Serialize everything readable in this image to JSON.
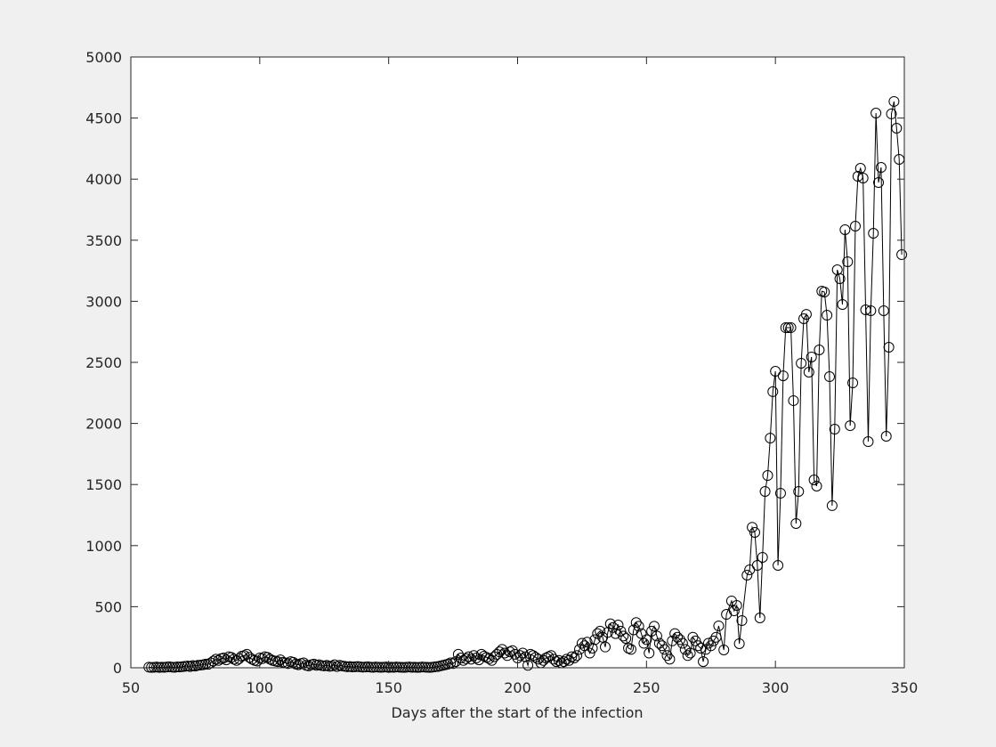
{
  "chart_data": {
    "type": "line",
    "marker": "circle",
    "color": "#000000",
    "xlabel": "Days after the start of the infection",
    "xlim": [
      50,
      350
    ],
    "xticks": [
      50,
      100,
      150,
      200,
      250,
      300,
      350
    ],
    "ylim": [
      0,
      5000
    ],
    "yticks": [
      0,
      500,
      1000,
      1500,
      2000,
      2500,
      3000,
      3500,
      4000,
      4500,
      5000
    ],
    "grid": false,
    "x": [
      57,
      58,
      59,
      60,
      61,
      62,
      63,
      64,
      65,
      66,
      67,
      68,
      69,
      70,
      71,
      72,
      73,
      74,
      75,
      76,
      77,
      78,
      79,
      80,
      81,
      82,
      83,
      84,
      85,
      86,
      87,
      88,
      89,
      90,
      91,
      92,
      93,
      94,
      95,
      96,
      97,
      98,
      99,
      100,
      101,
      102,
      103,
      104,
      105,
      106,
      107,
      108,
      109,
      110,
      111,
      112,
      113,
      114,
      115,
      116,
      117,
      118,
      119,
      120,
      121,
      122,
      123,
      124,
      125,
      126,
      127,
      128,
      129,
      130,
      131,
      132,
      133,
      134,
      135,
      136,
      137,
      138,
      139,
      140,
      141,
      142,
      143,
      144,
      145,
      146,
      147,
      148,
      149,
      150,
      151,
      152,
      153,
      154,
      155,
      156,
      157,
      158,
      159,
      160,
      161,
      162,
      163,
      164,
      165,
      166,
      167,
      168,
      169,
      170,
      171,
      172,
      173,
      174,
      175,
      176,
      177,
      178,
      179,
      180,
      181,
      182,
      183,
      184,
      185,
      186,
      187,
      188,
      189,
      190,
      191,
      192,
      193,
      194,
      195,
      196,
      197,
      198,
      199,
      200,
      201,
      202,
      203,
      204,
      205,
      206,
      207,
      208,
      209,
      210,
      211,
      212,
      213,
      214,
      215,
      216,
      217,
      218,
      219,
      220,
      221,
      222,
      223,
      224,
      225,
      226,
      227,
      228,
      229,
      230,
      231,
      232,
      233,
      234,
      235,
      236,
      237,
      238,
      239,
      240,
      241,
      242,
      243,
      244,
      245,
      246,
      247,
      248,
      249,
      250,
      251,
      252,
      253,
      254,
      255,
      256,
      257,
      258,
      259,
      260,
      261,
      262,
      263,
      264,
      265,
      266,
      267,
      268,
      269,
      270,
      271,
      272,
      273,
      274,
      275,
      276,
      277,
      278,
      280,
      281,
      283,
      284,
      285,
      286,
      287,
      289,
      290,
      291,
      292,
      293,
      294,
      295,
      296,
      297,
      298,
      299,
      300,
      301,
      302,
      303,
      304,
      305,
      306,
      307,
      308,
      309,
      310,
      311,
      312,
      313,
      314,
      315,
      316,
      317,
      318,
      319,
      320,
      321,
      322,
      323,
      324,
      325,
      326,
      327,
      328,
      329,
      330,
      331,
      332,
      333,
      334,
      335,
      336,
      337,
      338,
      339,
      340,
      341,
      342,
      343,
      344,
      345,
      346,
      347,
      348,
      349
    ],
    "values": [
      5,
      3,
      4,
      6,
      3,
      5,
      4,
      6,
      8,
      5,
      4,
      7,
      6,
      9,
      12,
      15,
      10,
      18,
      14,
      20,
      22,
      25,
      30,
      28,
      40,
      55,
      70,
      60,
      75,
      80,
      65,
      90,
      85,
      70,
      60,
      75,
      95,
      100,
      110,
      85,
      70,
      60,
      55,
      80,
      75,
      90,
      85,
      70,
      60,
      55,
      50,
      65,
      45,
      40,
      35,
      50,
      45,
      30,
      25,
      35,
      40,
      20,
      15,
      25,
      30,
      20,
      25,
      18,
      15,
      20,
      12,
      15,
      25,
      10,
      20,
      15,
      12,
      8,
      10,
      6,
      8,
      10,
      7,
      5,
      6,
      8,
      5,
      4,
      6,
      5,
      4,
      5,
      6,
      3,
      5,
      4,
      6,
      5,
      4,
      3,
      5,
      6,
      4,
      5,
      3,
      4,
      6,
      5,
      4,
      3,
      5,
      8,
      10,
      15,
      20,
      25,
      30,
      40,
      35,
      50,
      110,
      80,
      60,
      75,
      90,
      70,
      100,
      80,
      65,
      110,
      95,
      85,
      75,
      60,
      90,
      110,
      130,
      150,
      120,
      100,
      130,
      140,
      110,
      80,
      100,
      120,
      90,
      20,
      110,
      100,
      85,
      70,
      40,
      60,
      80,
      90,
      100,
      70,
      50,
      60,
      40,
      50,
      70,
      60,
      90,
      80,
      100,
      150,
      200,
      180,
      210,
      120,
      160,
      230,
      280,
      300,
      250,
      170,
      290,
      360,
      330,
      280,
      350,
      300,
      260,
      240,
      160,
      150,
      310,
      370,
      340,
      280,
      200,
      230,
      120,
      300,
      340,
      260,
      200,
      180,
      150,
      100,
      70,
      220,
      280,
      250,
      230,
      200,
      150,
      100,
      120,
      250,
      220,
      180,
      160,
      50,
      150,
      200,
      180,
      220,
      250,
      343,
      146,
      437,
      547,
      466,
      510,
      197,
      386,
      758,
      802,
      1150,
      1108,
      838,
      408,
      904,
      1443,
      1574,
      1880,
      2260,
      2427,
      838,
      1429,
      2390,
      2784,
      2784,
      2784,
      2187,
      1181,
      1443,
      2493,
      2857,
      2893,
      2420,
      2544,
      1538,
      1487,
      2602,
      3083,
      3076,
      2886,
      2383,
      1327,
      1953,
      3258,
      3185,
      2974,
      3586,
      3324,
      1982,
      2332,
      3615,
      4023,
      4089,
      4009,
      2930,
      1851,
      2923,
      3557,
      4541,
      3972,
      4096,
      2923,
      1895,
      2624,
      4534,
      4636,
      4417,
      4162,
      3382
    ]
  }
}
